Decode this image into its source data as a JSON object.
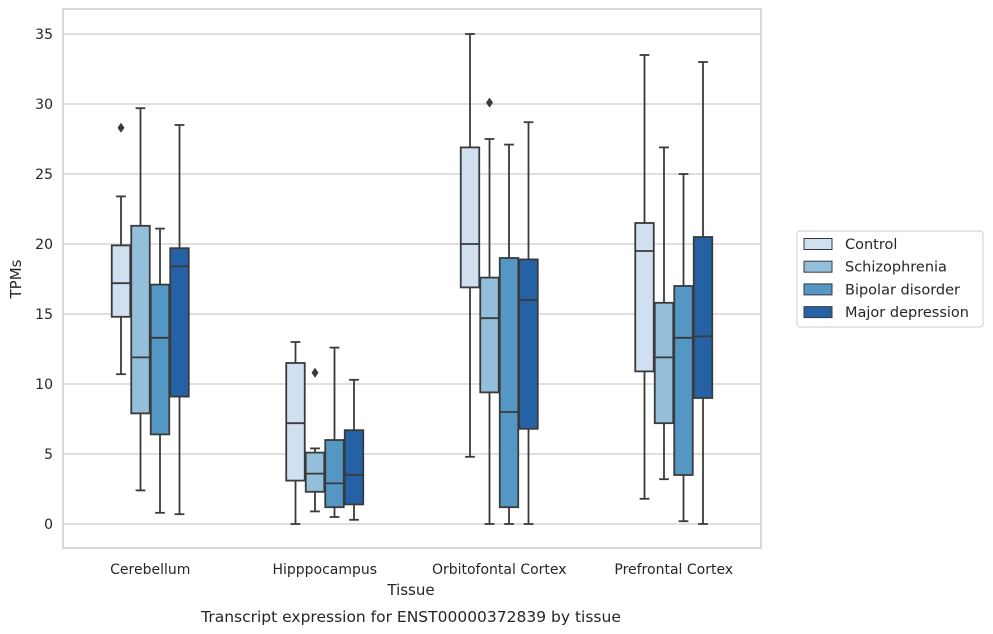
{
  "caption": "Transcript expression for ENST00000372839 by tissue",
  "chart_data": {
    "type": "box",
    "xlabel": "Tissue",
    "ylabel": "TPMs",
    "ylim": [
      -1.7,
      36.6
    ],
    "yticks": [
      0,
      5,
      10,
      15,
      20,
      25,
      30,
      35
    ],
    "grid": "horizontal",
    "legend_position": "right",
    "categories": [
      "Cerebellum",
      "Hipppocampus",
      "Orbitofontal Cortex",
      "Prefrontal Cortex"
    ],
    "series": [
      {
        "name": "Control",
        "color": "#d0e0f1",
        "boxes": [
          {
            "q1": 14.8,
            "median": 17.2,
            "q3": 19.9,
            "whisker_low": 10.7,
            "whisker_high": 23.4,
            "outliers": [
              28.3
            ]
          },
          {
            "q1": 3.1,
            "median": 7.2,
            "q3": 11.5,
            "whisker_low": 0.0,
            "whisker_high": 13.0,
            "outliers": []
          },
          {
            "q1": 16.9,
            "median": 20.0,
            "q3": 26.9,
            "whisker_low": 4.8,
            "whisker_high": 35.0,
            "outliers": []
          },
          {
            "q1": 10.9,
            "median": 19.5,
            "q3": 21.5,
            "whisker_low": 1.8,
            "whisker_high": 33.5,
            "outliers": []
          }
        ]
      },
      {
        "name": "Schizophrenia",
        "color": "#93bfdb",
        "boxes": [
          {
            "q1": 7.9,
            "median": 11.9,
            "q3": 21.3,
            "whisker_low": 2.4,
            "whisker_high": 29.7,
            "outliers": []
          },
          {
            "q1": 2.3,
            "median": 3.6,
            "q3": 5.1,
            "whisker_low": 0.9,
            "whisker_high": 5.4,
            "outliers": [
              10.8
            ]
          },
          {
            "q1": 9.4,
            "median": 14.7,
            "q3": 17.6,
            "whisker_low": 0.0,
            "whisker_high": 27.5,
            "outliers": [
              30.1
            ]
          },
          {
            "q1": 7.2,
            "median": 11.9,
            "q3": 15.8,
            "whisker_low": 3.2,
            "whisker_high": 26.9,
            "outliers": []
          }
        ]
      },
      {
        "name": "Bipolar disorder",
        "color": "#5597c4",
        "boxes": [
          {
            "q1": 6.4,
            "median": 13.3,
            "q3": 17.1,
            "whisker_low": 0.8,
            "whisker_high": 21.1,
            "outliers": []
          },
          {
            "q1": 1.2,
            "median": 2.9,
            "q3": 6.0,
            "whisker_low": 0.5,
            "whisker_high": 12.6,
            "outliers": []
          },
          {
            "q1": 1.2,
            "median": 8.0,
            "q3": 19.0,
            "whisker_low": 0.0,
            "whisker_high": 27.1,
            "outliers": []
          },
          {
            "q1": 3.5,
            "median": 13.3,
            "q3": 17.0,
            "whisker_low": 0.2,
            "whisker_high": 25.0,
            "outliers": []
          }
        ]
      },
      {
        "name": "Major depression",
        "color": "#2462a5",
        "boxes": [
          {
            "q1": 9.1,
            "median": 18.4,
            "q3": 19.7,
            "whisker_low": 0.7,
            "whisker_high": 28.5,
            "outliers": []
          },
          {
            "q1": 1.4,
            "median": 3.5,
            "q3": 6.7,
            "whisker_low": 0.3,
            "whisker_high": 10.3,
            "outliers": []
          },
          {
            "q1": 6.8,
            "median": 16.0,
            "q3": 18.9,
            "whisker_low": 0.0,
            "whisker_high": 28.7,
            "outliers": []
          },
          {
            "q1": 9.0,
            "median": 13.4,
            "q3": 20.5,
            "whisker_low": 0.0,
            "whisker_high": 33.0,
            "outliers": []
          }
        ]
      }
    ]
  },
  "style": {
    "line_color": "#3a3a3a",
    "grid_color": "#cccccc",
    "frame_color": "#cccccc"
  }
}
